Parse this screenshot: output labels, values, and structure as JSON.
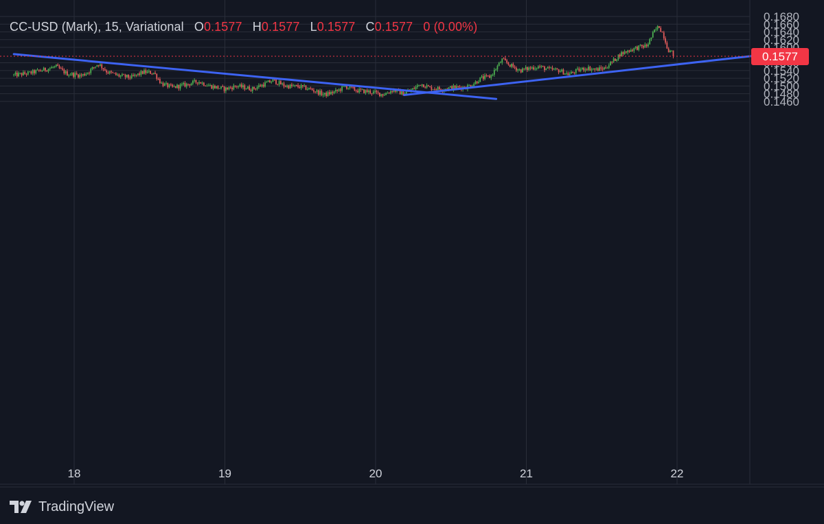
{
  "header": {
    "symbol": "CC-USD (Mark), 15, Variational",
    "o_label": "O",
    "o_value": "0.1577",
    "h_label": "H",
    "h_value": "0.1577",
    "l_label": "L",
    "l_value": "0.1577",
    "c_label": "C",
    "c_value": "0.1577",
    "change": "0 (0.00%)"
  },
  "footer": {
    "brand": "TradingView"
  },
  "colors": {
    "background": "#131722",
    "grid": "#2a2e39",
    "up": "#4caf50",
    "down": "#e05a5a",
    "trendline": "#3d63f2",
    "price_label_bg": "#f23645",
    "axis_text": "#b2b5be"
  },
  "chart_data": {
    "type": "candlestick",
    "x_ticks": [
      "18",
      "19",
      "20",
      "21",
      "22"
    ],
    "x_tick_values": [
      18,
      19,
      20,
      21,
      22
    ],
    "x_range": [
      17.6,
      22.5
    ],
    "ylim": [
      0.145,
      0.1686
    ],
    "y_ticks": [
      "0.1680",
      "0.1660",
      "0.1640",
      "0.1620",
      "0.1600",
      "0.1560",
      "0.1540",
      "0.1520",
      "0.1500",
      "0.1480",
      "0.1460"
    ],
    "y_tick_values": [
      0.168,
      0.166,
      0.164,
      0.162,
      0.16,
      0.156,
      0.154,
      0.152,
      0.15,
      0.148,
      0.146
    ],
    "last_price": 0.1577,
    "last_price_label": "0.1577",
    "price_path": [
      [
        17.6,
        0.1528
      ],
      [
        17.7,
        0.1533
      ],
      [
        17.8,
        0.1542
      ],
      [
        17.88,
        0.155
      ],
      [
        17.95,
        0.1532
      ],
      [
        18.05,
        0.1527
      ],
      [
        18.1,
        0.1538
      ],
      [
        18.16,
        0.1558
      ],
      [
        18.22,
        0.1536
      ],
      [
        18.3,
        0.1526
      ],
      [
        18.38,
        0.1522
      ],
      [
        18.46,
        0.1536
      ],
      [
        18.53,
        0.1534
      ],
      [
        18.58,
        0.1506
      ],
      [
        18.65,
        0.1496
      ],
      [
        18.75,
        0.1504
      ],
      [
        18.82,
        0.1512
      ],
      [
        18.9,
        0.15
      ],
      [
        19.0,
        0.1492
      ],
      [
        19.08,
        0.15
      ],
      [
        19.18,
        0.1492
      ],
      [
        19.25,
        0.1503
      ],
      [
        19.32,
        0.1514
      ],
      [
        19.4,
        0.15
      ],
      [
        19.5,
        0.1498
      ],
      [
        19.58,
        0.149
      ],
      [
        19.66,
        0.1477
      ],
      [
        19.74,
        0.1486
      ],
      [
        19.8,
        0.1499
      ],
      [
        19.88,
        0.1488
      ],
      [
        19.96,
        0.1485
      ],
      [
        20.05,
        0.1478
      ],
      [
        20.12,
        0.149
      ],
      [
        20.18,
        0.148
      ],
      [
        20.25,
        0.1492
      ],
      [
        20.3,
        0.1506
      ],
      [
        20.36,
        0.1495
      ],
      [
        20.44,
        0.1492
      ],
      [
        20.52,
        0.1496
      ],
      [
        20.6,
        0.1497
      ],
      [
        20.65,
        0.1506
      ],
      [
        20.7,
        0.152
      ],
      [
        20.76,
        0.1524
      ],
      [
        20.8,
        0.1546
      ],
      [
        20.84,
        0.1568
      ],
      [
        20.9,
        0.1552
      ],
      [
        20.96,
        0.154
      ],
      [
        21.02,
        0.1546
      ],
      [
        21.08,
        0.155
      ],
      [
        21.15,
        0.1543
      ],
      [
        21.22,
        0.154
      ],
      [
        21.28,
        0.153
      ],
      [
        21.34,
        0.154
      ],
      [
        21.4,
        0.1547
      ],
      [
        21.46,
        0.1542
      ],
      [
        21.52,
        0.1546
      ],
      [
        21.58,
        0.1566
      ],
      [
        21.62,
        0.1582
      ],
      [
        21.68,
        0.1592
      ],
      [
        21.74,
        0.16
      ],
      [
        21.8,
        0.1604
      ],
      [
        21.85,
        0.1642
      ],
      [
        21.88,
        0.1655
      ],
      [
        21.91,
        0.1632
      ],
      [
        21.94,
        0.1594
      ],
      [
        21.97,
        0.1585
      ],
      [
        21.98,
        0.1577
      ]
    ],
    "trendlines": [
      {
        "name": "descending",
        "points": [
          [
            17.6,
            0.15825
          ],
          [
            20.8,
            0.14665
          ]
        ]
      },
      {
        "name": "ascending",
        "points": [
          [
            20.19,
            0.14765
          ],
          [
            22.5,
            0.15777
          ]
        ]
      }
    ]
  }
}
